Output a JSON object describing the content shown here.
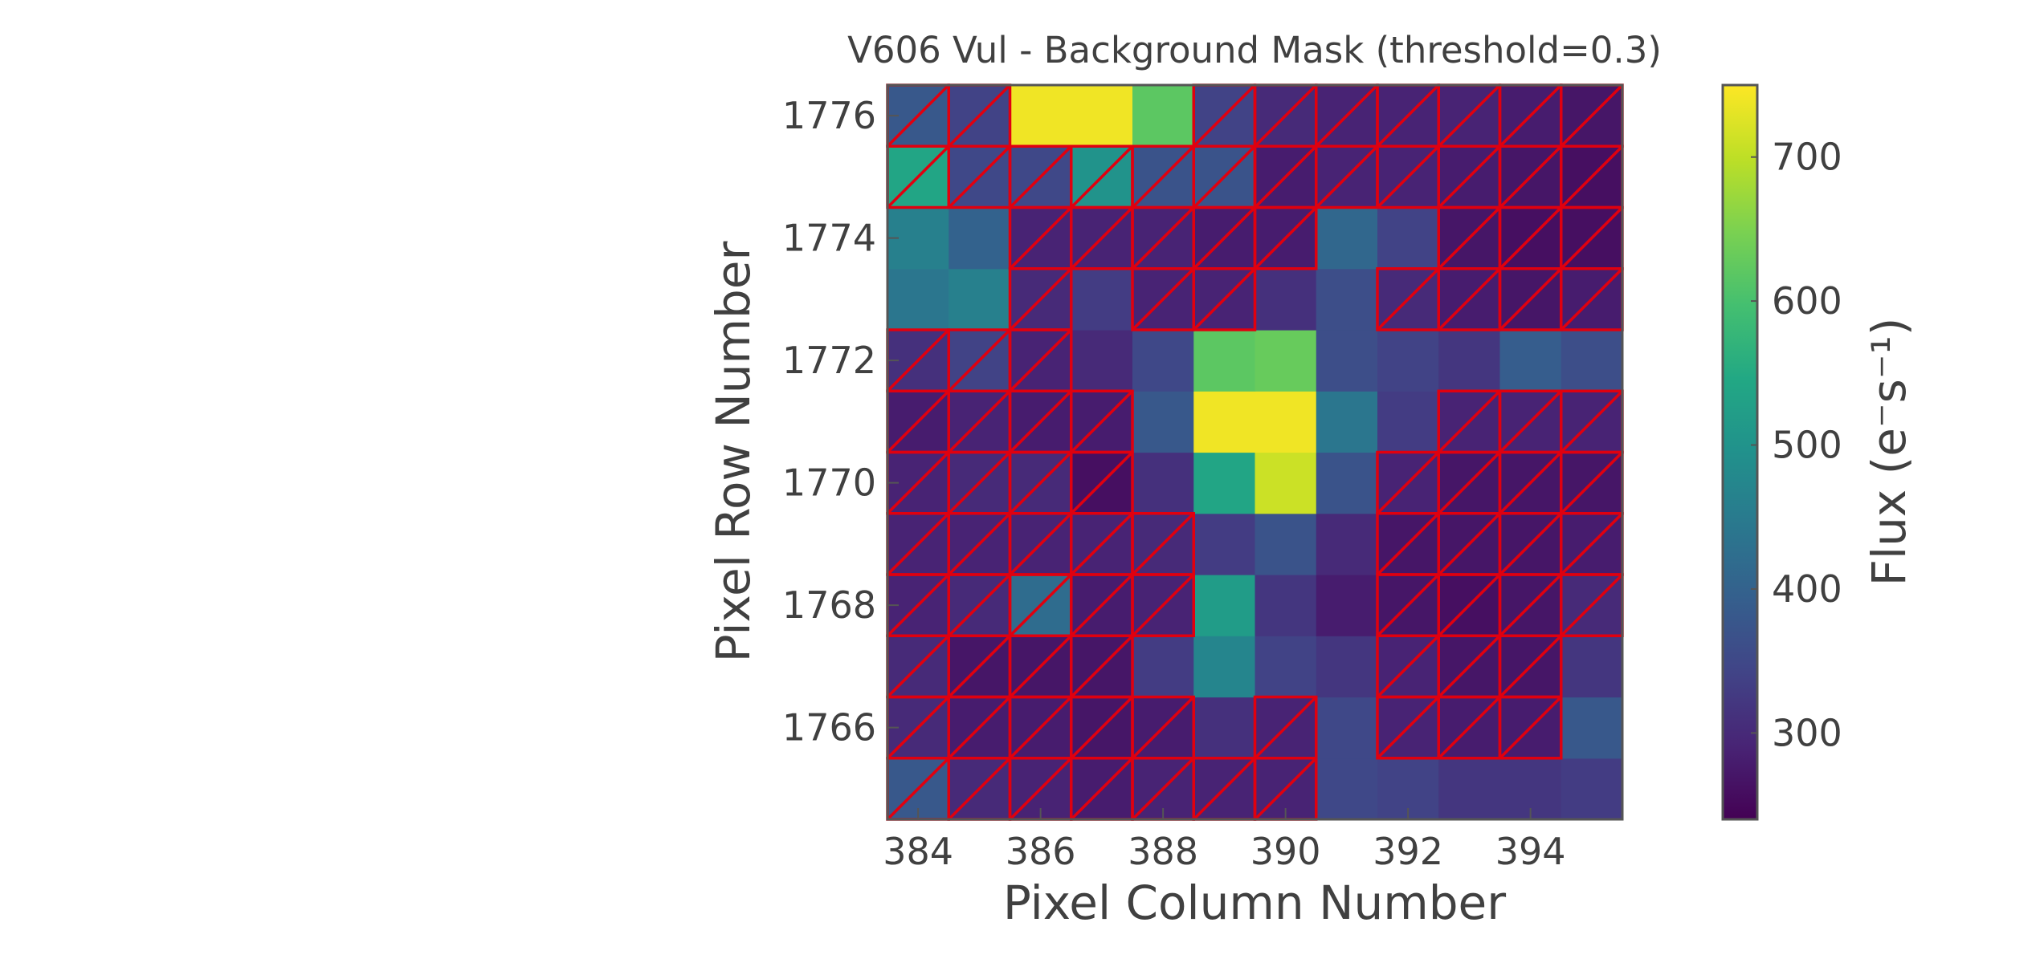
{
  "chart_data": {
    "type": "heatmap",
    "title": "V606 Vul - Background Mask (threshold=0.3)",
    "xlabel": "Pixel Column Number",
    "ylabel": "Pixel Row Number",
    "colorbar_label": "Flux (e⁻s⁻¹)",
    "colormap": "viridis",
    "mask_color": "#e0000f",
    "x_start": 384,
    "y_start": 1765,
    "xlim": [
      383.5,
      395.5
    ],
    "ylim": [
      1764.5,
      1776.5
    ],
    "x_ticks": [
      384,
      386,
      388,
      390,
      392,
      394
    ],
    "y_ticks": [
      1766,
      1768,
      1770,
      1772,
      1774,
      1776
    ],
    "colorbar_range": [
      240,
      750
    ],
    "colorbar_ticks": [
      300,
      400,
      500,
      600,
      700
    ],
    "values": [
      [
        380,
        300,
        290,
        280,
        290,
        290,
        290,
        350,
        340,
        320,
        320,
        330
      ],
      [
        300,
        280,
        280,
        270,
        280,
        310,
        290,
        350,
        290,
        280,
        280,
        380
      ],
      [
        300,
        270,
        270,
        270,
        330,
        470,
        340,
        320,
        290,
        270,
        270,
        320
      ],
      [
        290,
        300,
        420,
        280,
        290,
        520,
        320,
        280,
        270,
        260,
        270,
        300
      ],
      [
        290,
        290,
        290,
        290,
        300,
        330,
        370,
        300,
        270,
        270,
        270,
        280
      ],
      [
        290,
        300,
        300,
        260,
        310,
        540,
        710,
        370,
        290,
        270,
        270,
        270
      ],
      [
        280,
        290,
        280,
        280,
        380,
        740,
        740,
        440,
        330,
        290,
        290,
        290
      ],
      [
        310,
        340,
        290,
        300,
        350,
        620,
        630,
        360,
        340,
        320,
        390,
        360
      ],
      [
        440,
        460,
        300,
        330,
        290,
        290,
        310,
        360,
        300,
        280,
        270,
        280
      ],
      [
        460,
        400,
        290,
        290,
        290,
        280,
        280,
        410,
        340,
        270,
        260,
        260
      ],
      [
        540,
        350,
        350,
        500,
        370,
        370,
        280,
        290,
        290,
        280,
        270,
        260
      ],
      [
        380,
        340,
        740,
        740,
        620,
        340,
        300,
        290,
        290,
        290,
        280,
        270
      ]
    ],
    "mask": [
      [
        1,
        1,
        1,
        1,
        1,
        1,
        1,
        0,
        0,
        0,
        0,
        0
      ],
      [
        1,
        1,
        1,
        1,
        1,
        0,
        1,
        0,
        1,
        1,
        1,
        0
      ],
      [
        1,
        1,
        1,
        1,
        0,
        0,
        0,
        0,
        1,
        1,
        1,
        0
      ],
      [
        1,
        1,
        1,
        1,
        1,
        0,
        0,
        0,
        1,
        1,
        1,
        1
      ],
      [
        1,
        1,
        1,
        1,
        1,
        0,
        0,
        0,
        1,
        1,
        1,
        1
      ],
      [
        1,
        1,
        1,
        1,
        0,
        0,
        0,
        0,
        1,
        1,
        1,
        1
      ],
      [
        1,
        1,
        1,
        1,
        0,
        0,
        0,
        0,
        0,
        1,
        1,
        1
      ],
      [
        1,
        1,
        1,
        0,
        0,
        0,
        0,
        0,
        0,
        0,
        0,
        0
      ],
      [
        0,
        0,
        1,
        0,
        1,
        1,
        0,
        0,
        1,
        1,
        1,
        1
      ],
      [
        0,
        0,
        1,
        1,
        1,
        1,
        1,
        0,
        0,
        1,
        1,
        1
      ],
      [
        1,
        1,
        1,
        1,
        1,
        1,
        1,
        1,
        1,
        1,
        1,
        1
      ],
      [
        1,
        1,
        0,
        0,
        0,
        1,
        1,
        1,
        1,
        1,
        1,
        1
      ]
    ]
  }
}
